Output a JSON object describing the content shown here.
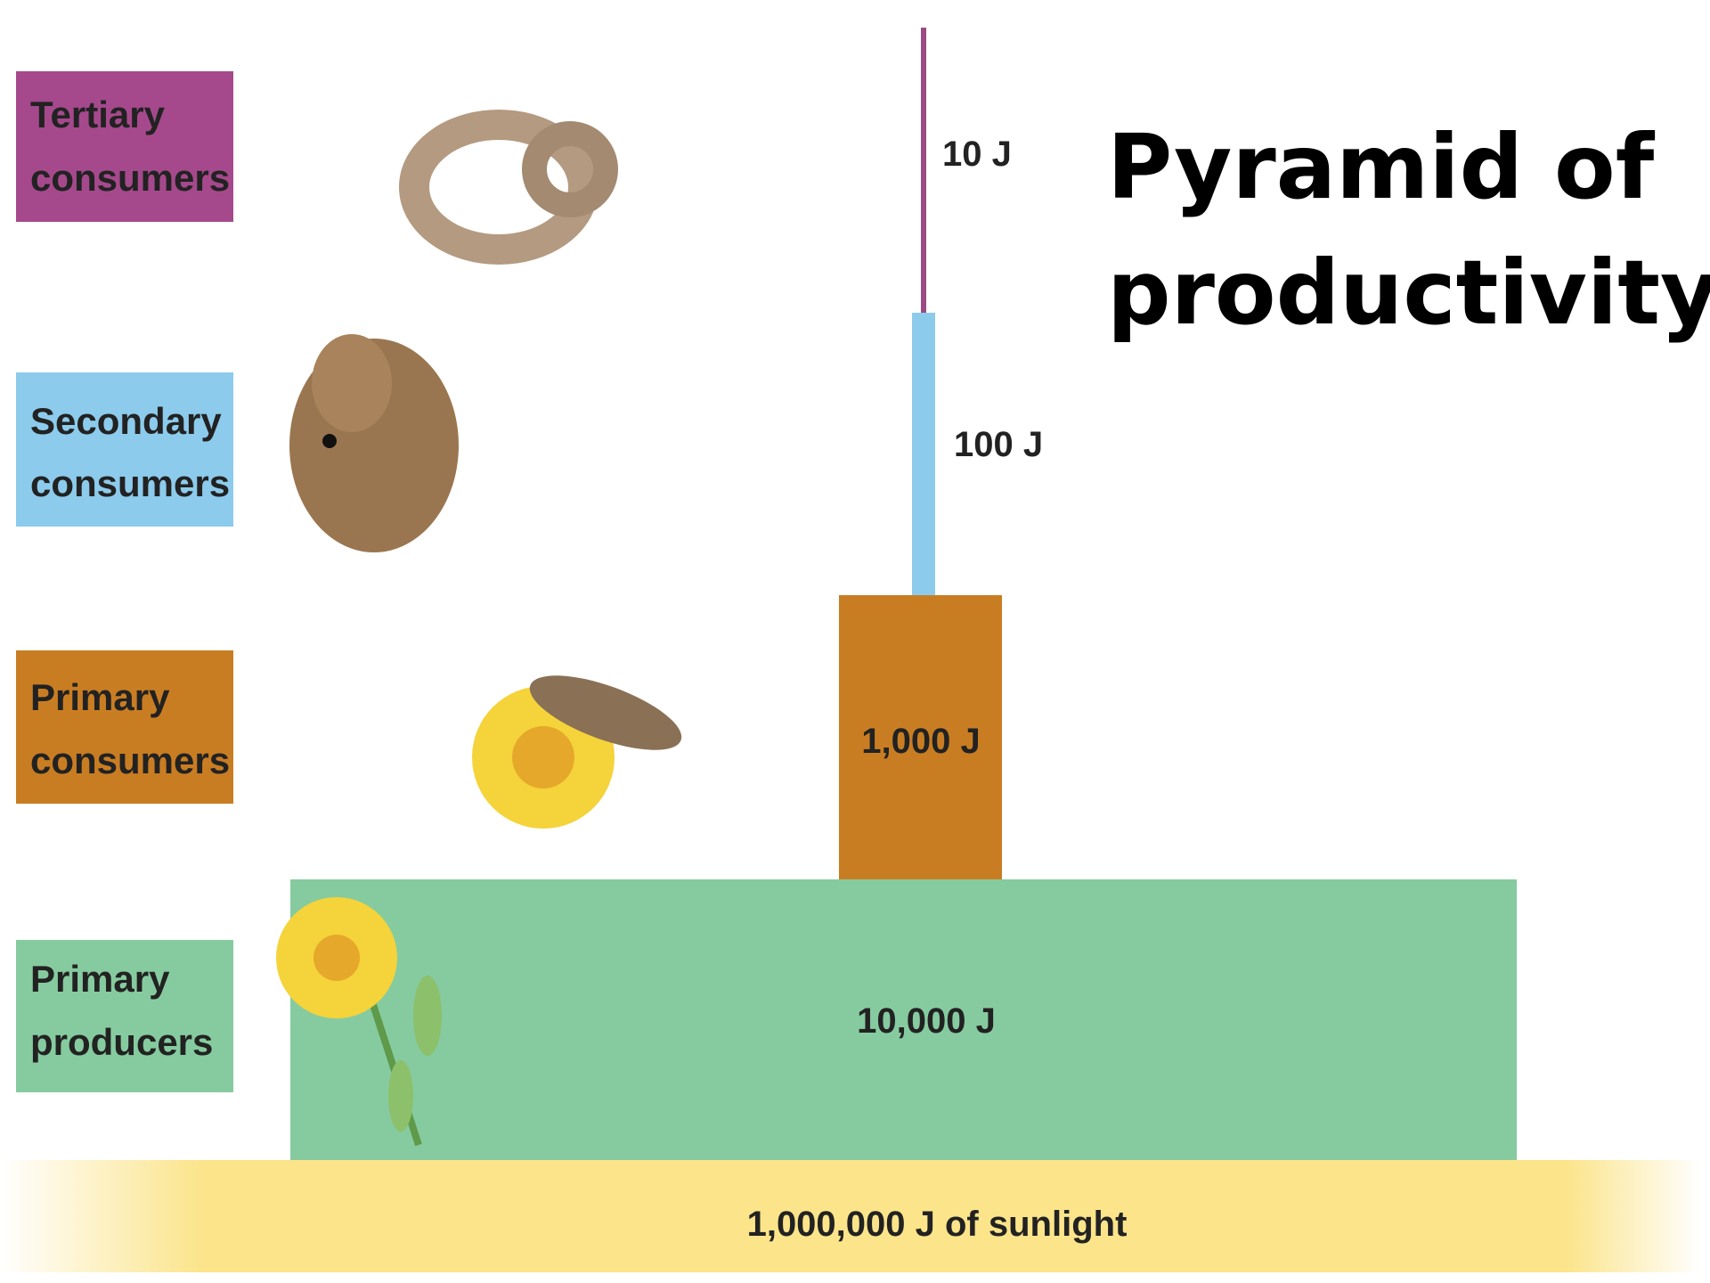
{
  "title_lines": [
    "Pyramid of",
    "productivity"
  ],
  "levels": [
    {
      "label": [
        "Tertiary",
        "consumers"
      ],
      "energy": "10 J"
    },
    {
      "label": [
        "Secondary",
        "consumers"
      ],
      "energy": "100 J"
    },
    {
      "label": [
        "Primary",
        "consumers"
      ],
      "energy": "1,000 J"
    },
    {
      "label": [
        "Primary",
        "producers"
      ],
      "energy": "10,000 J"
    }
  ],
  "source": "1,000,000 J of sunlight"
}
